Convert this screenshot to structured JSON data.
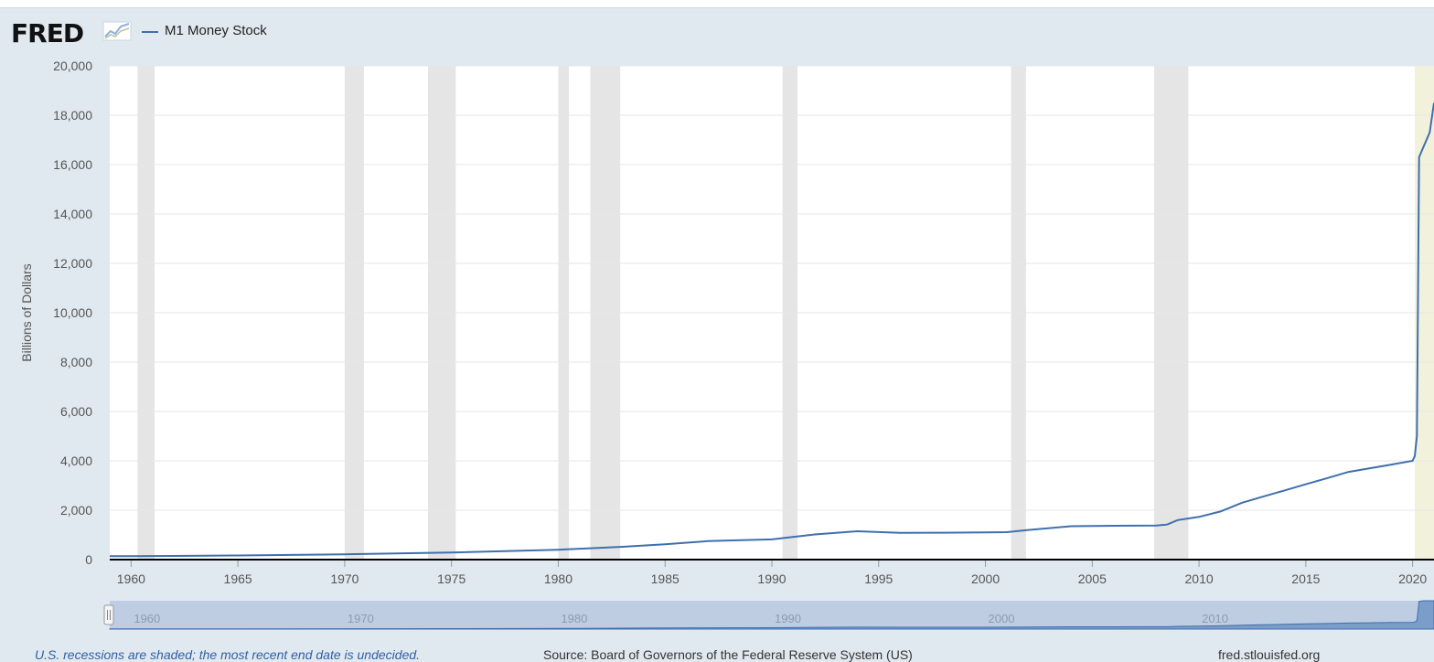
{
  "header": {
    "logo_text": "FRED",
    "logo_icon": "fred-chart-icon",
    "legend_label": "M1 Money Stock"
  },
  "colors": {
    "line": "#3f6fae",
    "recession": "#e5e5e5",
    "undecided": "#f2f2dc",
    "background": "#e1e9f0",
    "plot": "#ffffff"
  },
  "chart_data": {
    "type": "line",
    "ylabel": "Billions of Dollars",
    "xlim": [
      1959,
      2021
    ],
    "ylim": [
      0,
      20000
    ],
    "yticks": [
      0,
      2000,
      4000,
      6000,
      8000,
      10000,
      12000,
      14000,
      16000,
      18000,
      20000
    ],
    "ytick_labels": [
      "0",
      "2,000",
      "4,000",
      "6,000",
      "8,000",
      "10,000",
      "12,000",
      "14,000",
      "16,000",
      "18,000",
      "20,000"
    ],
    "xticks": [
      1960,
      1965,
      1970,
      1975,
      1980,
      1985,
      1990,
      1995,
      2000,
      2005,
      2010,
      2015,
      2020
    ],
    "xtick_labels": [
      "1960",
      "1965",
      "1970",
      "1975",
      "1980",
      "1985",
      "1990",
      "1995",
      "2000",
      "2005",
      "2010",
      "2015",
      "2020"
    ],
    "grid": true,
    "recessions": [
      [
        1960.3,
        1961.1
      ],
      [
        1970.0,
        1970.9
      ],
      [
        1973.9,
        1975.2
      ],
      [
        1980.0,
        1980.5
      ],
      [
        1981.5,
        1982.9
      ],
      [
        1990.5,
        1991.2
      ],
      [
        2001.2,
        2001.9
      ],
      [
        2007.9,
        2009.5
      ]
    ],
    "undecided_recession": [
      2020.1,
      2021
    ],
    "series": [
      {
        "name": "M1 Money Stock",
        "x": [
          1959,
          1960,
          1962,
          1965,
          1970,
          1975,
          1980,
          1983,
          1985,
          1987,
          1990,
          1992,
          1994,
          1996,
          1998,
          2000,
          2001,
          2002,
          2004,
          2006,
          2008,
          2008.5,
          2009,
          2010,
          2011,
          2012,
          2013,
          2014,
          2015,
          2016,
          2017,
          2018,
          2019,
          2020.0,
          2020.1,
          2020.2,
          2020.3,
          2020.5,
          2020.8,
          2021
        ],
        "y": [
          140,
          141,
          147,
          167,
          214,
          287,
          400,
          520,
          620,
          750,
          820,
          1020,
          1150,
          1080,
          1090,
          1100,
          1110,
          1200,
          1350,
          1370,
          1380,
          1420,
          1600,
          1730,
          1950,
          2300,
          2550,
          2800,
          3050,
          3300,
          3550,
          3700,
          3850,
          4000,
          4200,
          5000,
          16300,
          16700,
          17300,
          18500
        ]
      }
    ]
  },
  "navigator": {
    "labels": [
      "1960",
      "1970",
      "1980",
      "1990",
      "2000",
      "2010"
    ]
  },
  "footer": {
    "recession_note": "U.S. recessions are shaded; the most recent end date is undecided.",
    "source": "Source: Board of Governors of the Federal Reserve System (US)",
    "site": "fred.stlouisfed.org"
  }
}
